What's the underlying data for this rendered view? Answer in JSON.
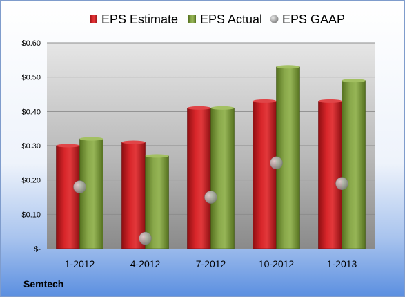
{
  "chart_data": {
    "type": "bar",
    "categories": [
      "1-2012",
      "4-2012",
      "7-2012",
      "10-2012",
      "1-2013"
    ],
    "series": [
      {
        "name": "EPS Estimate",
        "kind": "bar",
        "color": "#d0191c",
        "values": [
          0.3,
          0.31,
          0.41,
          0.43,
          0.43
        ]
      },
      {
        "name": "EPS Actual",
        "kind": "bar",
        "color": "#7f9e3a",
        "values": [
          0.32,
          0.27,
          0.41,
          0.53,
          0.49
        ]
      },
      {
        "name": "EPS GAAP",
        "kind": "marker",
        "color": "#a9a9a9",
        "values": [
          0.18,
          0.03,
          0.15,
          0.25,
          0.19
        ]
      }
    ],
    "ylim": [
      0,
      0.6
    ],
    "yticks": [
      0,
      0.1,
      0.2,
      0.3,
      0.4,
      0.5,
      0.6
    ],
    "ytick_labels": [
      "$-",
      "$0.10",
      "$0.20",
      "$0.30",
      "$0.40",
      "$0.50",
      "$0.60"
    ],
    "grid": true,
    "legend": "top"
  },
  "company": "Semtech"
}
